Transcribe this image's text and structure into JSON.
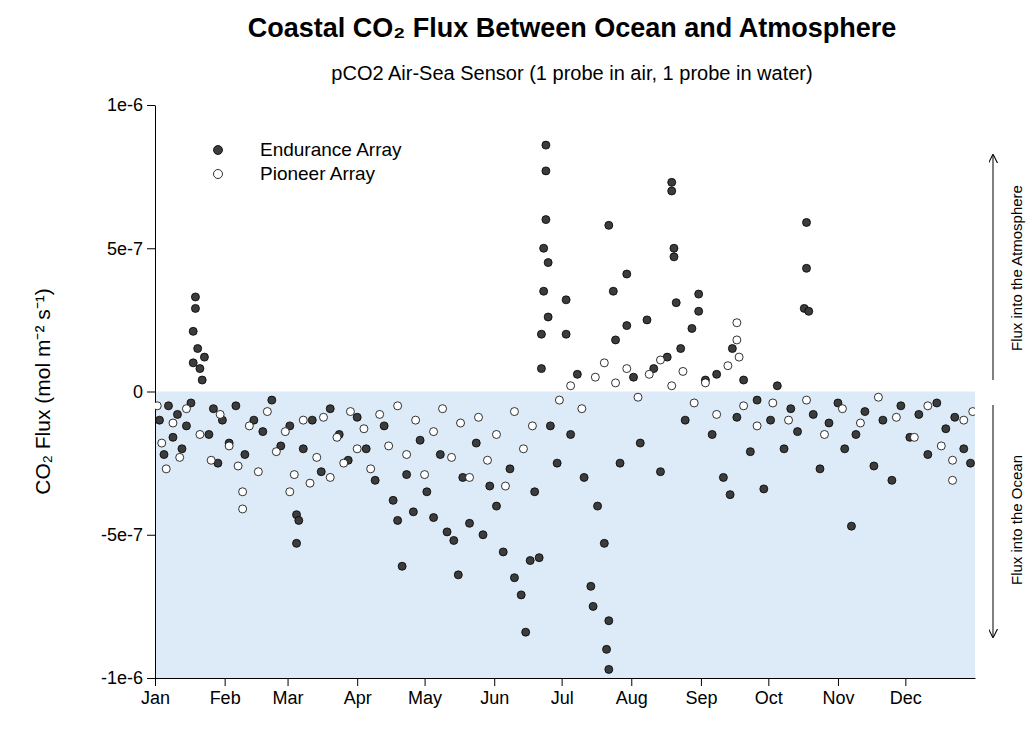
{
  "chart_data": {
    "type": "scatter",
    "title": "Coastal CO₂ Flux Between Ocean and Atmosphere",
    "subtitle": "pCO2 Air-Sea Sensor (1 probe in air, 1 probe in water)",
    "y_label": "CO₂ Flux (mol m⁻² s⁻¹)",
    "annotations": [
      "Flux into the Atmosphere",
      "Flux into the Ocean"
    ],
    "xlim": [
      0,
      365
    ],
    "xticks": [
      {
        "value": 0,
        "label": "Jan"
      },
      {
        "value": 31,
        "label": "Feb"
      },
      {
        "value": 59,
        "label": "Mar"
      },
      {
        "value": 90,
        "label": "Apr"
      },
      {
        "value": 120,
        "label": "May"
      },
      {
        "value": 151,
        "label": "Jun"
      },
      {
        "value": 181,
        "label": "Jul"
      },
      {
        "value": 212,
        "label": "Aug"
      },
      {
        "value": 243,
        "label": "Sep"
      },
      {
        "value": 273,
        "label": "Oct"
      },
      {
        "value": 304,
        "label": "Nov"
      },
      {
        "value": 334,
        "label": "Dec"
      }
    ],
    "ylim": [
      -1e-06,
      1e-06
    ],
    "yticks": [
      {
        "value": -1e-06,
        "label": "-1e-6"
      },
      {
        "value": -5e-07,
        "label": "-5e-7"
      },
      0,
      {
        "value": 5e-07,
        "label": "5e-7"
      },
      {
        "value": 1e-06,
        "label": "1e-6"
      }
    ],
    "legend": "top-left",
    "series": [
      {
        "name": "Endurance Array",
        "color": "#3c3c3c",
        "marker": "circle",
        "x": [
          2,
          4,
          6,
          8,
          10,
          12,
          14,
          16,
          17,
          17,
          18,
          18,
          19,
          20,
          21,
          22,
          24,
          26,
          28,
          30,
          33,
          36,
          40,
          44,
          48,
          52,
          56,
          60,
          63,
          63,
          64,
          66,
          70,
          74,
          78,
          82,
          86,
          90,
          94,
          98,
          102,
          106,
          108,
          110,
          112,
          115,
          118,
          121,
          124,
          127,
          130,
          133,
          135,
          137,
          140,
          143,
          146,
          149,
          152,
          155,
          158,
          160,
          163,
          165,
          167,
          169,
          171,
          172,
          172,
          173,
          173,
          174,
          174,
          174,
          175,
          175,
          176,
          179,
          183,
          183,
          185,
          188,
          191,
          194,
          195,
          197,
          200,
          201,
          202,
          202,
          202,
          204,
          205,
          207,
          210,
          210,
          213,
          216,
          219,
          222,
          225,
          228,
          230,
          230,
          231,
          231,
          232,
          234,
          236,
          239,
          242,
          242,
          245,
          248,
          250,
          253,
          256,
          257,
          259,
          262,
          265,
          268,
          271,
          274,
          277,
          280,
          283,
          286,
          289,
          290,
          290,
          291,
          293,
          296,
          300,
          304,
          307,
          310,
          312,
          316,
          320,
          324,
          328,
          332,
          336,
          340,
          344,
          348,
          352,
          356,
          360,
          363
        ],
        "values": [
          -1e-07,
          -2.2e-07,
          -5e-08,
          -1.6e-07,
          -8e-08,
          -2e-07,
          -1.2e-07,
          -4e-08,
          1e-07,
          2.1e-07,
          3.3e-07,
          2.9e-07,
          1.5e-07,
          8e-08,
          4e-08,
          1.2e-07,
          -1.5e-07,
          -6e-08,
          -2.5e-07,
          -1e-07,
          -1.8e-07,
          -5e-08,
          -2.2e-07,
          -1e-07,
          -1.4e-07,
          -3e-08,
          -1.9e-07,
          -1.2e-07,
          -4.3e-07,
          -5.3e-07,
          -4.5e-07,
          -2e-07,
          -1e-07,
          -2.8e-07,
          -6e-08,
          -1.5e-07,
          -2.4e-07,
          -9e-08,
          -2e-07,
          -3.1e-07,
          -1.2e-07,
          -3.8e-07,
          -4.5e-07,
          -6.1e-07,
          -2.9e-07,
          -4.2e-07,
          -1.7e-07,
          -3.5e-07,
          -4.4e-07,
          -2.2e-07,
          -4.9e-07,
          -5.2e-07,
          -6.4e-07,
          -3e-07,
          -4.6e-07,
          -1.8e-07,
          -5e-07,
          -3.3e-07,
          -4e-07,
          -5.6e-07,
          -2.7e-07,
          -6.5e-07,
          -7.1e-07,
          -8.4e-07,
          -5.9e-07,
          -3.5e-07,
          -5.8e-07,
          8e-08,
          2e-07,
          3.5e-07,
          5e-07,
          6e-07,
          7.7e-07,
          8.6e-07,
          4.5e-07,
          2.6e-07,
          -1.2e-07,
          -2.5e-07,
          3.2e-07,
          2e-07,
          -1.5e-07,
          6e-08,
          -3e-07,
          -6.8e-07,
          -7.5e-07,
          -4e-07,
          -5.3e-07,
          -9e-07,
          -9.7e-07,
          -8e-07,
          5.8e-07,
          3.5e-07,
          1.8e-07,
          -2.5e-07,
          4.1e-07,
          2.3e-07,
          5e-08,
          -1.8e-07,
          2.5e-07,
          8e-08,
          -2.8e-07,
          1.2e-07,
          7.3e-07,
          7e-07,
          5e-07,
          4.7e-07,
          3.1e-07,
          1.5e-07,
          -1e-07,
          2.2e-07,
          3.4e-07,
          2.8e-07,
          4e-08,
          -1.5e-07,
          6e-08,
          -3e-07,
          -3.6e-07,
          1.5e-07,
          -9e-08,
          4e-08,
          -2.1e-07,
          -3e-08,
          -3.4e-07,
          -1e-07,
          2e-08,
          -2e-07,
          -6e-08,
          -1.4e-07,
          2.9e-07,
          5.9e-07,
          4.3e-07,
          2.8e-07,
          -8e-08,
          -2.7e-07,
          -1.1e-07,
          -4e-08,
          -2e-07,
          -4.7e-07,
          -1.5e-07,
          -7e-08,
          -2.6e-07,
          -1e-07,
          -3.1e-07,
          -5e-08,
          -1.6e-07,
          -8e-08,
          -2.2e-07,
          -4e-08,
          -1.3e-07,
          -9e-08,
          -2e-07,
          -2.5e-07
        ]
      },
      {
        "name": "Pioneer Array",
        "color": "#ffffff",
        "marker": "circle",
        "x": [
          1,
          3,
          5,
          8,
          11,
          14,
          20,
          25,
          29,
          33,
          37,
          39,
          39,
          42,
          46,
          50,
          54,
          58,
          60,
          62,
          66,
          69,
          72,
          75,
          78,
          81,
          84,
          87,
          90,
          93,
          96,
          100,
          104,
          108,
          112,
          116,
          120,
          124,
          128,
          132,
          136,
          140,
          144,
          148,
          152,
          156,
          160,
          164,
          168,
          180,
          185,
          190,
          196,
          200,
          205,
          210,
          215,
          220,
          225,
          230,
          235,
          240,
          245,
          250,
          255,
          259,
          259,
          260,
          262,
          268,
          275,
          282,
          290,
          298,
          306,
          314,
          322,
          330,
          338,
          344,
          350,
          355,
          355,
          360,
          364
        ],
        "values": [
          -5e-08,
          -1.8e-07,
          -2.7e-07,
          -1.1e-07,
          -2.3e-07,
          -6e-08,
          -1.5e-07,
          -2.4e-07,
          -8e-08,
          -1.9e-07,
          -2.6e-07,
          -4.1e-07,
          -3.5e-07,
          -1.2e-07,
          -2.8e-07,
          -7e-08,
          -2.1e-07,
          -1.4e-07,
          -3.5e-07,
          -2.9e-07,
          -1e-07,
          -3.2e-07,
          -2.3e-07,
          -9e-08,
          -3e-07,
          -1.6e-07,
          -2.5e-07,
          -7e-08,
          -2e-07,
          -1.3e-07,
          -2.7e-07,
          -8e-08,
          -1.9e-07,
          -5e-08,
          -2.2e-07,
          -1e-07,
          -2.9e-07,
          -1.4e-07,
          -6e-08,
          -2.3e-07,
          -1.1e-07,
          -3e-07,
          -9e-08,
          -2.4e-07,
          -1.5e-07,
          -3.3e-07,
          -7e-08,
          -2e-07,
          -1.2e-07,
          -3e-08,
          2e-08,
          -6e-08,
          5e-08,
          1e-07,
          3e-08,
          8e-08,
          -2e-08,
          6e-08,
          1.1e-07,
          2e-08,
          7e-08,
          -4e-08,
          3e-08,
          -8e-08,
          9e-08,
          2.4e-07,
          1.8e-07,
          1.2e-07,
          -5e-08,
          -1.2e-07,
          -4e-08,
          -1e-07,
          -3e-08,
          -1.5e-07,
          -6e-08,
          -1.1e-07,
          -2e-08,
          -9e-08,
          -1.6e-07,
          -5e-08,
          -1.9e-07,
          -3.1e-07,
          -2.4e-07,
          -1e-07,
          -7e-08
        ]
      }
    ]
  }
}
